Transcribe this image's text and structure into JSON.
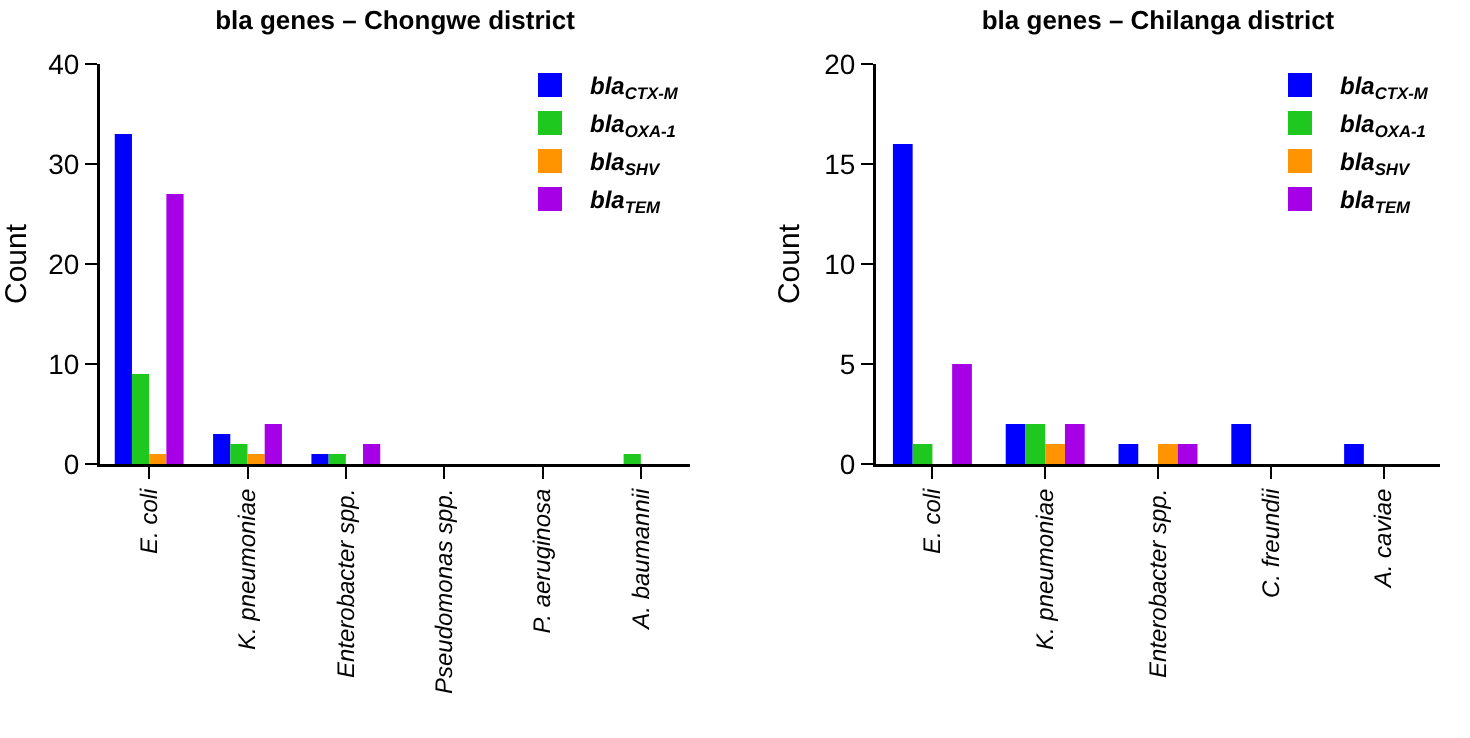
{
  "chart_data": [
    {
      "type": "bar",
      "title": "bla genes – Chongwe district",
      "ylabel": "Count",
      "categories": [
        "E. coli",
        "K. pneumoniae",
        "Enterobacter spp.",
        "Pseudomonas spp.",
        "P. aeruginosa",
        "A. baumannii"
      ],
      "series": [
        {
          "name": "bla$_{CTX-M}$",
          "color": "#0000ff",
          "values": [
            33,
            3,
            1,
            0,
            0,
            0
          ]
        },
        {
          "name": "bla$_{OXA-1}$",
          "color": "#1fc81f",
          "values": [
            9,
            2,
            1,
            0,
            0,
            1
          ]
        },
        {
          "name": "bla$_{SHV}$",
          "color": "#ff9400",
          "values": [
            1,
            1,
            0,
            0,
            0,
            0
          ]
        },
        {
          "name": "bla$_{TEM}$",
          "color": "#a600e6",
          "values": [
            27,
            4,
            2,
            0,
            0,
            0
          ]
        }
      ],
      "ylim": [
        0,
        40
      ],
      "yticks": [
        0,
        10,
        20,
        30,
        40
      ],
      "grid": false,
      "legend": "top right"
    },
    {
      "type": "bar",
      "title": "bla genes – Chilanga district",
      "ylabel": "Count",
      "categories": [
        "E. coli",
        "K. pneumoniae",
        "Enterobacter spp.",
        "C. freundii",
        "A. caviae"
      ],
      "series": [
        {
          "name": "bla$_{CTX-M}$",
          "color": "#0000ff",
          "values": [
            16,
            2,
            1,
            2,
            1
          ]
        },
        {
          "name": "bla$_{OXA-1}$",
          "color": "#1fc81f",
          "values": [
            1,
            2,
            0,
            0,
            0
          ]
        },
        {
          "name": "bla$_{SHV}$",
          "color": "#ff9400",
          "values": [
            0,
            1,
            1,
            0,
            0
          ]
        },
        {
          "name": "bla$_{TEM}$",
          "color": "#a600e6",
          "values": [
            5,
            2,
            1,
            0,
            0
          ]
        }
      ],
      "ylim": [
        0,
        20
      ],
      "yticks": [
        0,
        5,
        10,
        15,
        20
      ],
      "grid": false,
      "legend": "top right"
    }
  ]
}
